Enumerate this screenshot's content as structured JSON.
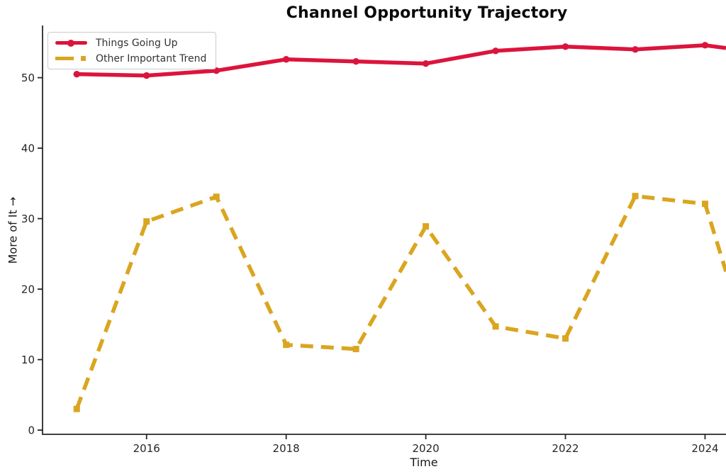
{
  "chart_data": {
    "type": "line",
    "title": "Channel Opportunity Trajectory",
    "xlabel": "Time",
    "ylabel": "More of It →",
    "x": [
      2015,
      2016,
      2017,
      2018,
      2019,
      2020,
      2021,
      2022,
      2023,
      2024
    ],
    "series": [
      {
        "name": "Things Going Up",
        "color": "#DC143C",
        "line_style": "solid",
        "marker": "circle",
        "values": [
          50.5,
          50.3,
          51.0,
          52.6,
          52.3,
          52.0,
          53.8,
          54.4,
          54.0,
          54.6
        ],
        "right_edge_exit_value": 54.2
      },
      {
        "name": "Other Important Trend",
        "color": "#DAA520",
        "line_style": "dashed",
        "marker": "square",
        "values": [
          3.0,
          29.6,
          33.1,
          12.1,
          11.5,
          28.9,
          14.7,
          13.0,
          33.2,
          32.1
        ],
        "right_edge_exit_value": 22.5
      }
    ],
    "x_ticks": [
      2016,
      2018,
      2020,
      2022,
      2024
    ],
    "y_ticks": [
      0,
      10,
      20,
      30,
      40,
      50
    ],
    "xlim": [
      2014.51,
      2024.3
    ],
    "ylim": [
      -0.6,
      57.4
    ],
    "grid": false,
    "legend_position": "upper left",
    "lines_clipped_at_right_edge": true,
    "axis_color": "#262626",
    "tick_label_color": "#262626",
    "title_color": "#0a0a0a",
    "legend_text_color": "#333333"
  }
}
